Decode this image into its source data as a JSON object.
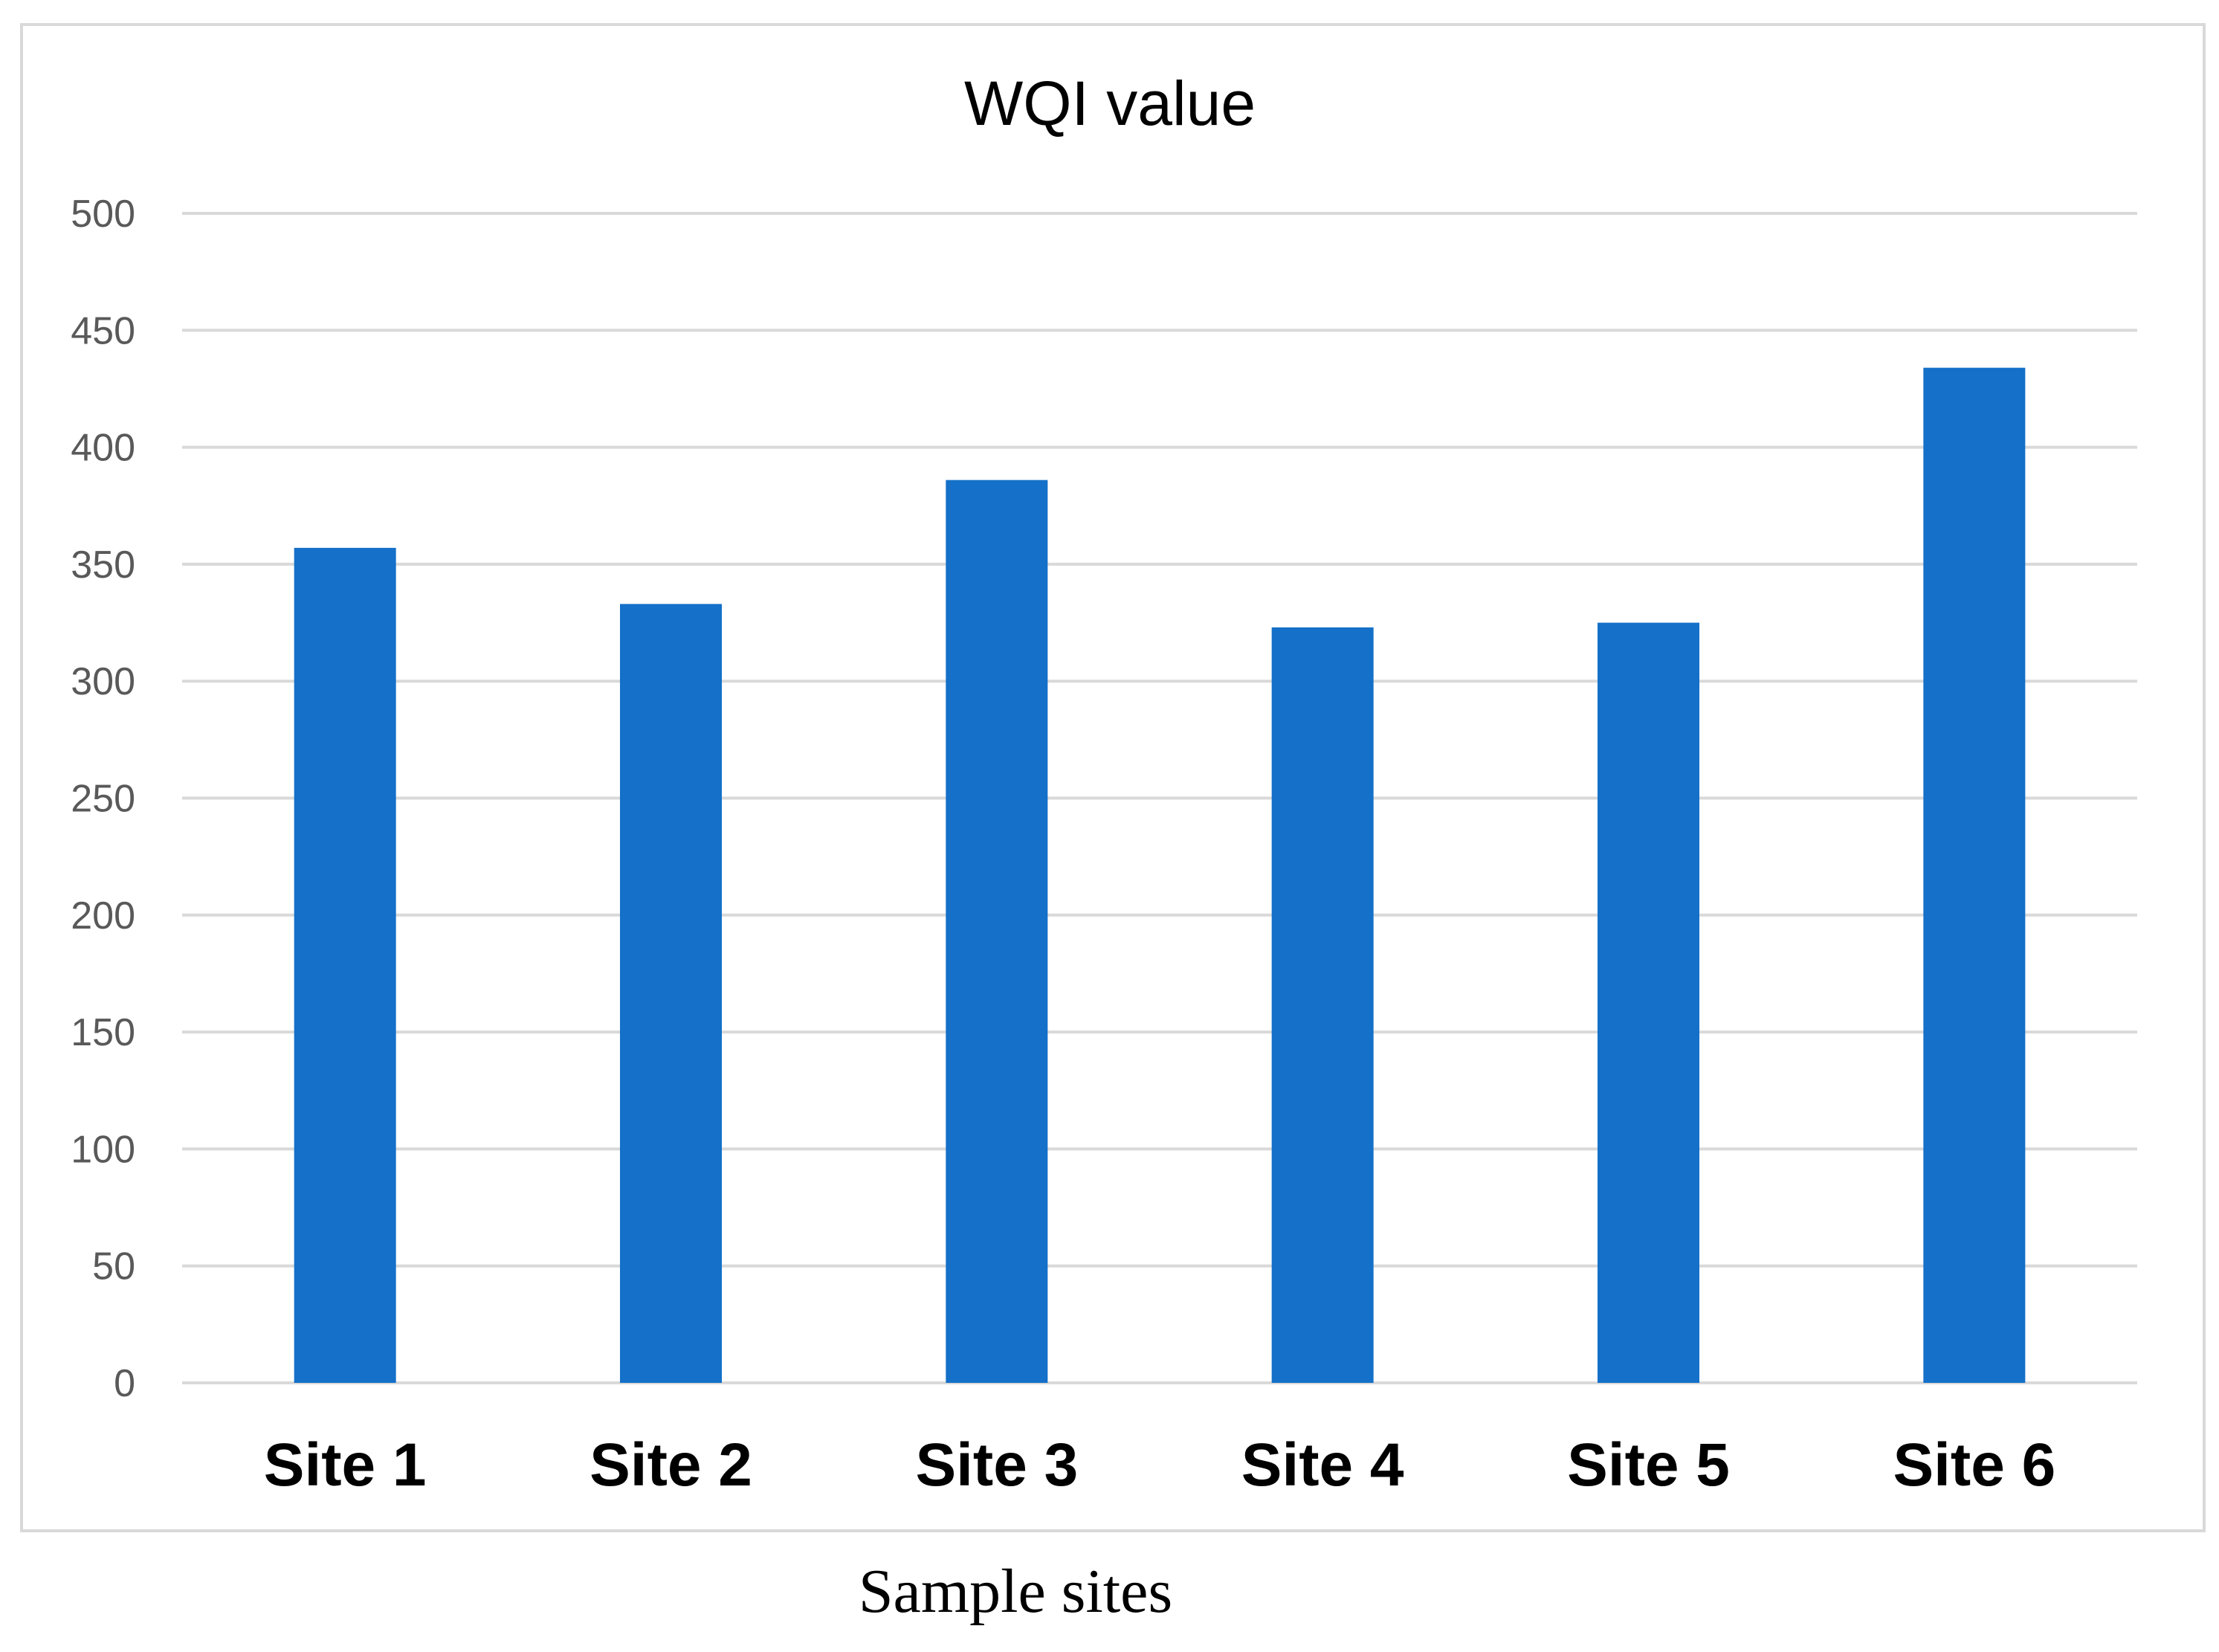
{
  "chart_data": {
    "type": "bar",
    "title": "WQI value",
    "xlabel": "Sample sites",
    "ylabel": "",
    "categories": [
      "Site 1",
      "Site 2",
      "Site 3",
      "Site 4",
      "Site 5",
      "Site 6"
    ],
    "values": [
      357,
      333,
      386,
      323,
      325,
      434
    ],
    "ylim": [
      0,
      500
    ],
    "yticks": [
      0,
      50,
      100,
      150,
      200,
      250,
      300,
      350,
      400,
      450,
      500
    ],
    "grid": true,
    "legend": "none",
    "bar_color": "#1470C8"
  }
}
